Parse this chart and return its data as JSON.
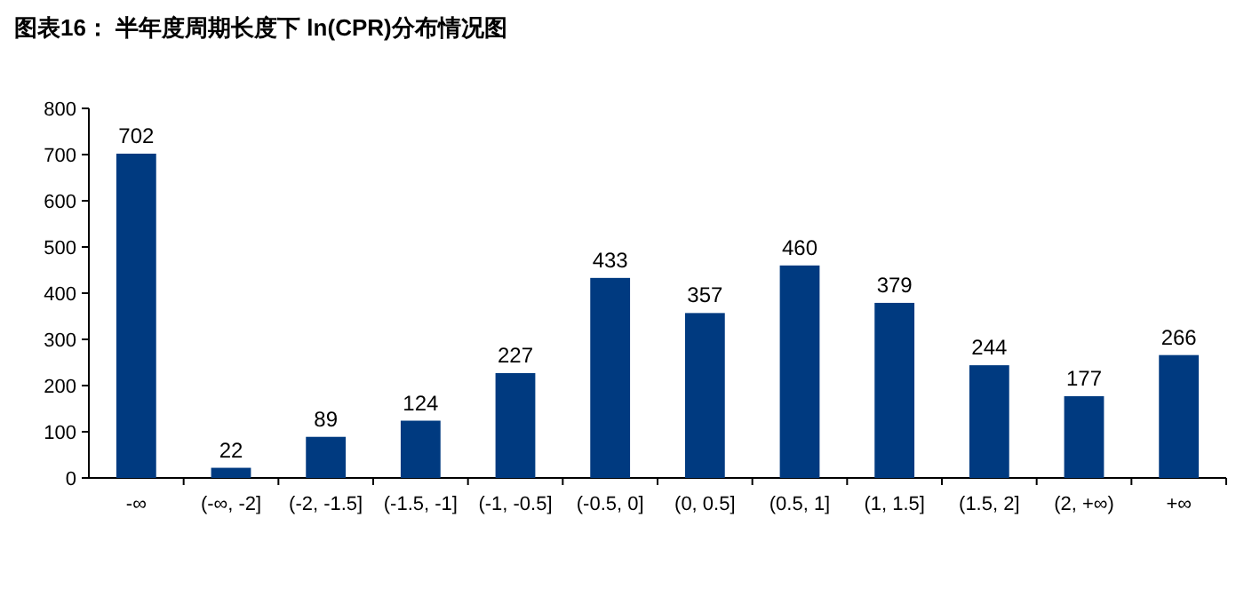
{
  "chart_data": {
    "type": "bar",
    "title": "图表16：  半年度周期长度下 ln(CPR)分布情况图",
    "categories": [
      "-∞",
      "(-∞, -2]",
      "(-2, -1.5]",
      "(-1.5, -1]",
      "(-1, -0.5]",
      "(-0.5, 0]",
      "(0, 0.5]",
      "(0.5, 1]",
      "(1, 1.5]",
      "(1.5, 2]",
      "(2, +∞)",
      "+∞"
    ],
    "values": [
      702,
      22,
      89,
      124,
      227,
      433,
      357,
      460,
      379,
      244,
      177,
      266
    ],
    "color": "#003a80",
    "ylim": [
      0,
      800
    ],
    "yticks": [
      0,
      100,
      200,
      300,
      400,
      500,
      600,
      700,
      800
    ],
    "data_labels": true
  }
}
